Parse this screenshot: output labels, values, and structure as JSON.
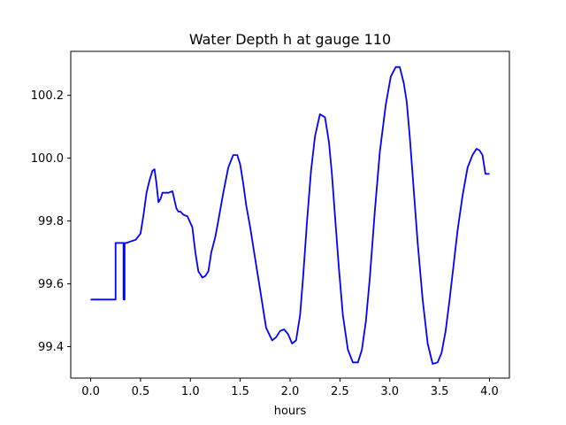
{
  "chart_data": {
    "type": "line",
    "title": "Water Depth h at gauge 110",
    "xlabel": "hours",
    "ylabel": "",
    "xlim": [
      -0.2,
      4.2
    ],
    "ylim": [
      99.3,
      100.34
    ],
    "xticks": [
      0.0,
      0.5,
      1.0,
      1.5,
      2.0,
      2.5,
      3.0,
      3.5,
      4.0
    ],
    "xtick_labels": [
      "0.0",
      "0.5",
      "1.0",
      "1.5",
      "2.0",
      "2.5",
      "3.0",
      "3.5",
      "4.0"
    ],
    "yticks": [
      99.4,
      99.6,
      99.8,
      100.0,
      100.2
    ],
    "ytick_labels": [
      "99.4",
      "99.6",
      "99.8",
      "100.0",
      "100.2"
    ],
    "grid": false,
    "series": [
      {
        "color": "#0000ff",
        "x": [
          0.0,
          0.25,
          0.25,
          0.33,
          0.33,
          0.34,
          0.34,
          0.36,
          0.4,
          0.45,
          0.5,
          0.53,
          0.56,
          0.59,
          0.62,
          0.64,
          0.66,
          0.68,
          0.7,
          0.72,
          0.75,
          0.78,
          0.82,
          0.86,
          0.88,
          0.9,
          0.93,
          0.97,
          1.02,
          1.05,
          1.08,
          1.12,
          1.15,
          1.18,
          1.21,
          1.25,
          1.28,
          1.33,
          1.38,
          1.43,
          1.47,
          1.5,
          1.53,
          1.56,
          1.6,
          1.64,
          1.7,
          1.76,
          1.82,
          1.86,
          1.9,
          1.94,
          1.98,
          2.02,
          2.06,
          2.1,
          2.13,
          2.17,
          2.21,
          2.25,
          2.3,
          2.35,
          2.39,
          2.42,
          2.45,
          2.49,
          2.53,
          2.58,
          2.63,
          2.68,
          2.72,
          2.76,
          2.8,
          2.85,
          2.9,
          2.96,
          3.01,
          3.06,
          3.1,
          3.14,
          3.17,
          3.2,
          3.24,
          3.28,
          3.33,
          3.38,
          3.43,
          3.48,
          3.52,
          3.56,
          3.6,
          3.64,
          3.68,
          3.73,
          3.78,
          3.83,
          3.87,
          3.9,
          3.93,
          3.96,
          3.98,
          4.0
        ],
        "y": [
          99.55,
          99.55,
          99.73,
          99.73,
          99.55,
          99.55,
          99.73,
          99.73,
          99.735,
          99.74,
          99.76,
          99.82,
          99.89,
          99.93,
          99.96,
          99.965,
          99.92,
          99.86,
          99.87,
          99.89,
          99.89,
          99.89,
          99.895,
          99.84,
          99.83,
          99.83,
          99.82,
          99.815,
          99.78,
          99.7,
          99.64,
          99.62,
          99.625,
          99.64,
          99.7,
          99.75,
          99.8,
          99.89,
          99.97,
          100.01,
          100.01,
          99.98,
          99.92,
          99.85,
          99.78,
          99.7,
          99.58,
          99.46,
          99.42,
          99.43,
          99.45,
          99.455,
          99.44,
          99.41,
          99.42,
          99.5,
          99.62,
          99.8,
          99.96,
          100.07,
          100.14,
          100.13,
          100.05,
          99.95,
          99.82,
          99.65,
          99.5,
          99.39,
          99.35,
          99.35,
          99.39,
          99.48,
          99.62,
          99.83,
          100.02,
          100.17,
          100.26,
          100.29,
          100.29,
          100.24,
          100.18,
          100.07,
          99.9,
          99.73,
          99.55,
          99.41,
          99.345,
          99.35,
          99.38,
          99.45,
          99.55,
          99.66,
          99.77,
          99.88,
          99.97,
          100.01,
          100.03,
          100.025,
          100.01,
          99.95,
          99.95,
          99.95
        ]
      }
    ]
  }
}
